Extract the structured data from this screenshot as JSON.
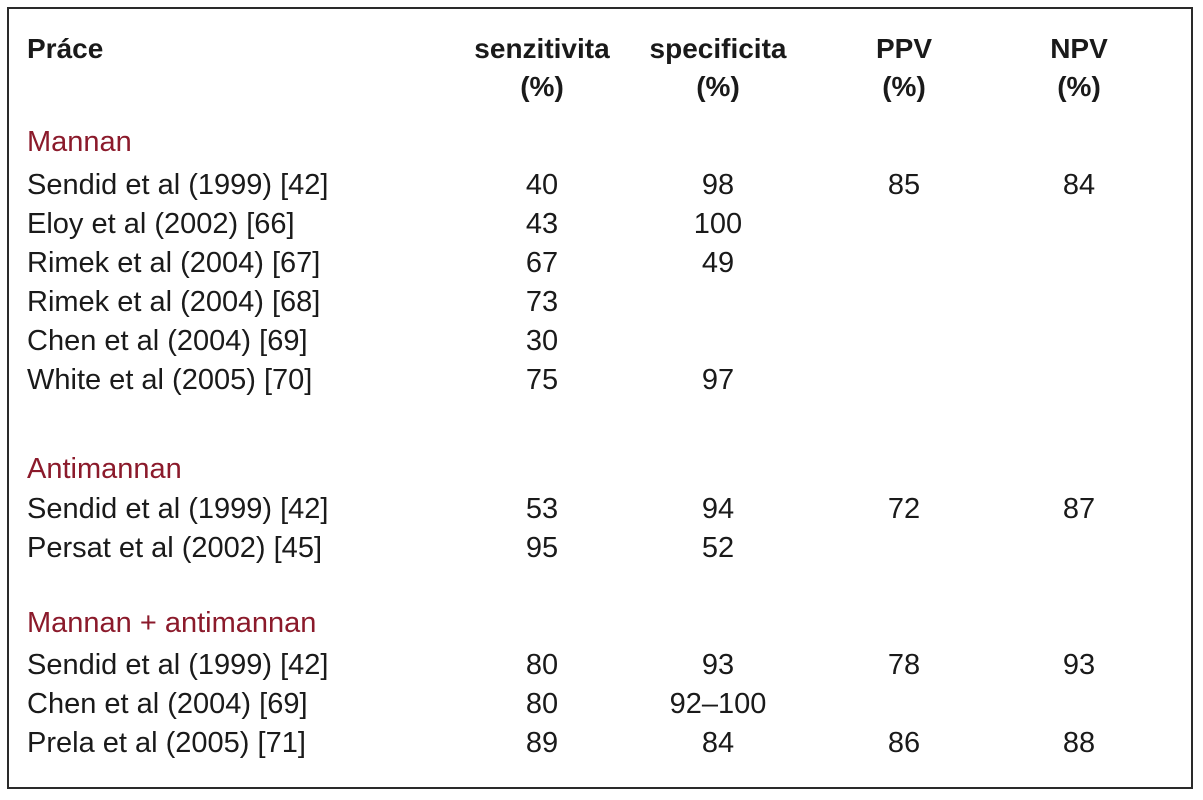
{
  "header": {
    "col_work": "Práce",
    "col_sens": [
      "senzitivita",
      "(%)"
    ],
    "col_spec": [
      "specificita",
      "(%)"
    ],
    "col_ppv": [
      "PPV",
      "(%)"
    ],
    "col_npv": [
      "NPV",
      "(%)"
    ]
  },
  "sections": [
    {
      "title": "Mannan",
      "rows": [
        {
          "name": "Sendid et al (1999) [42]",
          "sens": "40",
          "spec": "98",
          "ppv": "85",
          "npv": "84"
        },
        {
          "name": "Eloy et al (2002) [66]",
          "sens": "43",
          "spec": "100",
          "ppv": "",
          "npv": ""
        },
        {
          "name": "Rimek et al (2004) [67]",
          "sens": "67",
          "spec": "49",
          "ppv": "",
          "npv": ""
        },
        {
          "name": "Rimek et al (2004) [68]",
          "sens": "73",
          "spec": "",
          "ppv": "",
          "npv": ""
        },
        {
          "name": "Chen et al (2004) [69]",
          "sens": "30",
          "spec": "",
          "ppv": "",
          "npv": ""
        },
        {
          "name": "White et al (2005) [70]",
          "sens": "75",
          "spec": "97",
          "ppv": "",
          "npv": ""
        }
      ]
    },
    {
      "title": "Antimannan",
      "rows": [
        {
          "name": "Sendid et al (1999) [42]",
          "sens": "53",
          "spec": "94",
          "ppv": "72",
          "npv": "87"
        },
        {
          "name": "Persat et al (2002) [45]",
          "sens": "95",
          "spec": "52",
          "ppv": "",
          "npv": ""
        }
      ]
    },
    {
      "title": "Mannan + antimannan",
      "rows": [
        {
          "name": "Sendid et al (1999) [42]",
          "sens": "80",
          "spec": "93",
          "ppv": "78",
          "npv": "93"
        },
        {
          "name": "Chen et al (2004) [69]",
          "sens": "80",
          "spec": "92–100",
          "ppv": "",
          "npv": ""
        },
        {
          "name": "Prela et al (2005) [71]",
          "sens": "89",
          "spec": "84",
          "ppv": "86",
          "npv": "88"
        }
      ]
    }
  ]
}
